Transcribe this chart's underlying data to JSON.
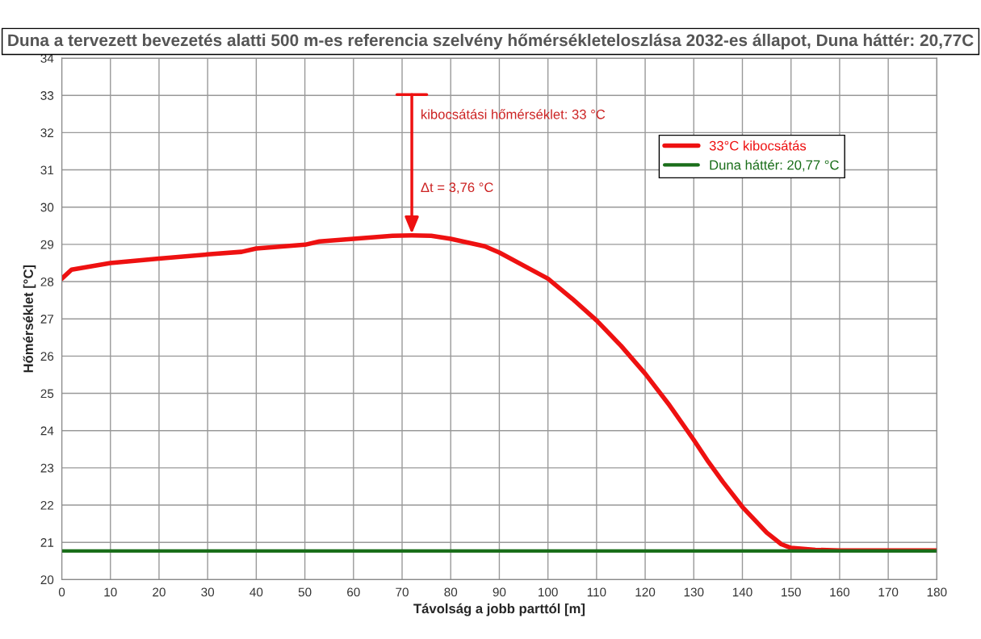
{
  "chart_data": {
    "type": "line",
    "title": "Duna a tervezett bevezetés alatti 500 m-es referencia szelvény hőmérsékleteloszlása 2032-es állapot, Duna háttér: 20,77C",
    "xlabel": "Távolság a jobb parttól [m]",
    "ylabel": "Hőmérséklet [°C]",
    "series": [
      {
        "name": "33°C kibocsátás",
        "color": "#ee1111",
        "x": [
          0,
          2,
          10,
          20,
          30,
          37,
          40,
          50,
          53,
          60,
          68,
          72,
          76,
          80,
          87,
          90,
          100,
          105,
          110,
          115,
          120,
          125,
          130,
          133,
          136,
          140,
          145,
          148,
          150,
          155,
          160,
          180
        ],
        "values": [
          28.08,
          28.32,
          28.5,
          28.62,
          28.73,
          28.8,
          28.89,
          28.99,
          29.08,
          29.15,
          29.23,
          29.24,
          29.23,
          29.15,
          28.95,
          28.78,
          28.08,
          27.54,
          26.96,
          26.28,
          25.53,
          24.68,
          23.75,
          23.16,
          22.62,
          21.95,
          21.26,
          20.95,
          20.85,
          20.8,
          20.78,
          20.78
        ]
      }
    ],
    "ref_lines": [
      {
        "axis": "y",
        "value": 20.77,
        "label": "Duna háttér: 20,77 °C",
        "color": "#1a6e1a"
      }
    ],
    "annotations": [
      "kibocsátási hőmérséklet: 33 °C",
      "Δt = 3,76 °C"
    ],
    "xlim": [
      0,
      180
    ],
    "xticks": [
      0,
      10,
      20,
      30,
      40,
      50,
      60,
      70,
      80,
      90,
      100,
      110,
      120,
      130,
      140,
      150,
      160,
      170,
      180
    ],
    "ylim": [
      20,
      34
    ],
    "yticks": [
      20,
      21,
      22,
      23,
      24,
      25,
      26,
      27,
      28,
      29,
      30,
      31,
      32,
      33,
      34
    ],
    "grid": true,
    "legend": "top right",
    "line_style": "solid",
    "marker": "none"
  }
}
